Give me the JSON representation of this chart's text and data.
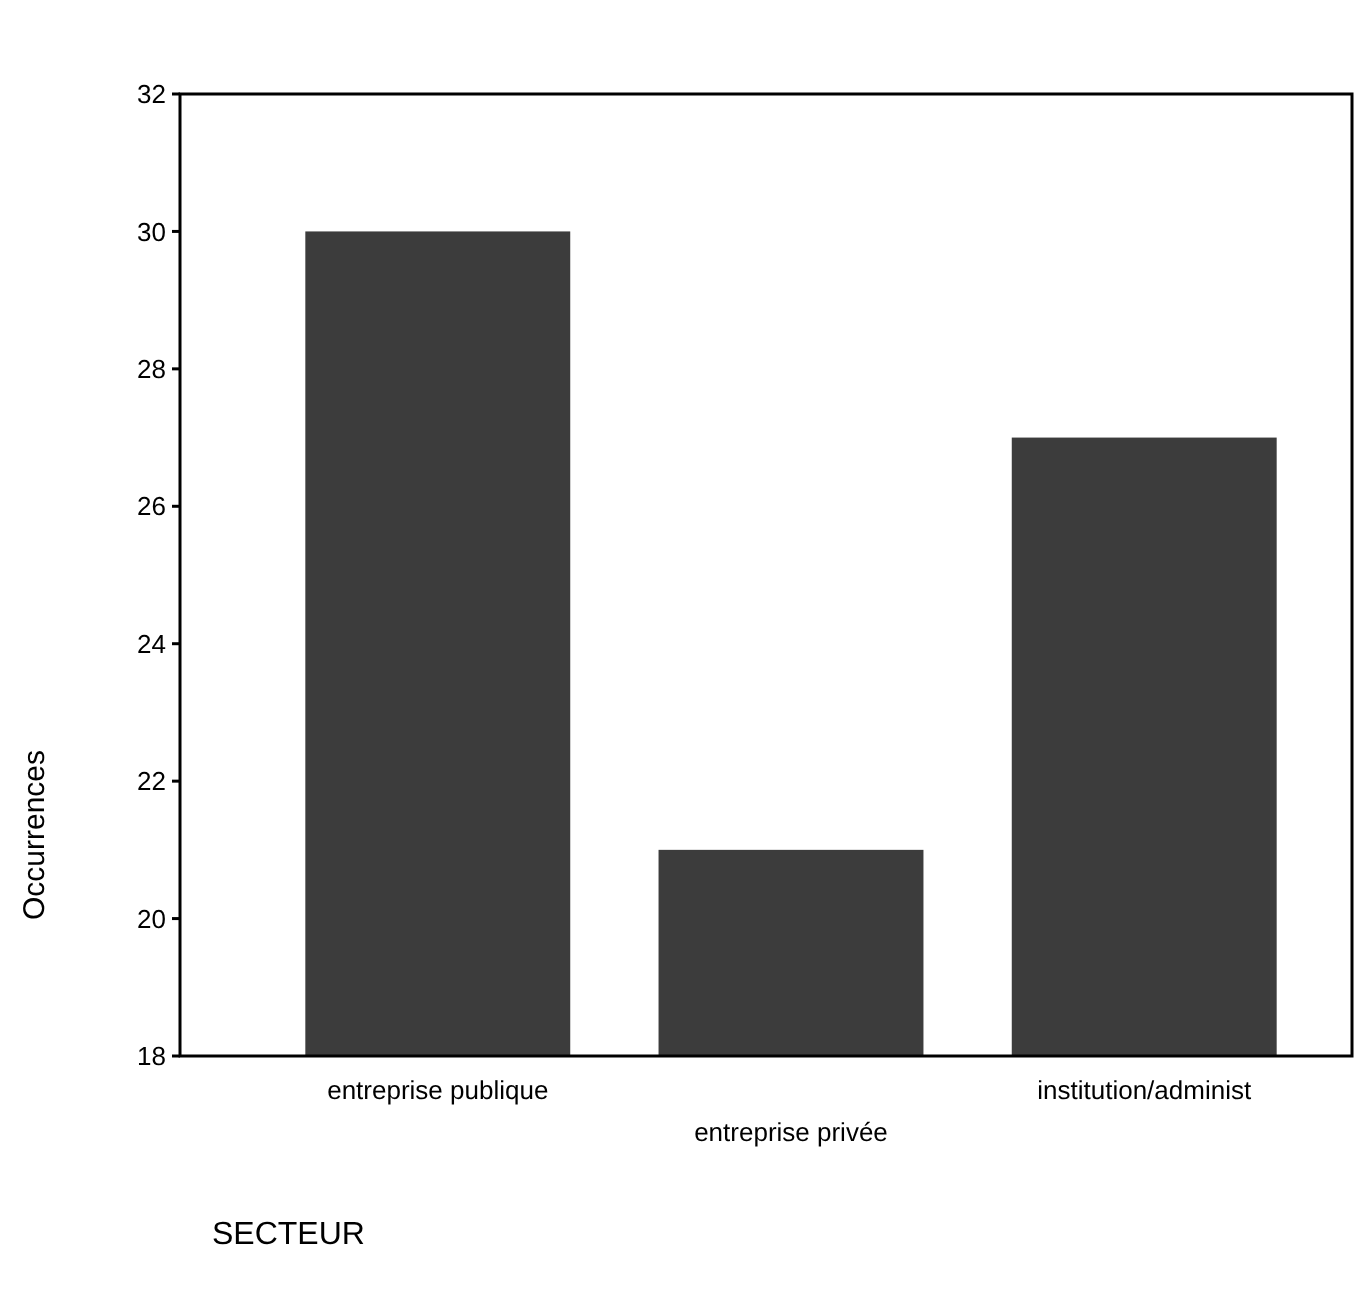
{
  "chart_data": {
    "type": "bar",
    "xlabel": "SECTEUR",
    "ylabel": "Occurrences",
    "categories": [
      "entreprise publique",
      "entreprise privée",
      "institution/administ"
    ],
    "values": [
      30,
      21,
      27
    ],
    "color": "#3c3c3c",
    "ylim": [
      18,
      32
    ],
    "yticks": [
      18,
      20,
      22,
      24,
      26,
      28,
      30,
      32
    ],
    "grid": false
  }
}
